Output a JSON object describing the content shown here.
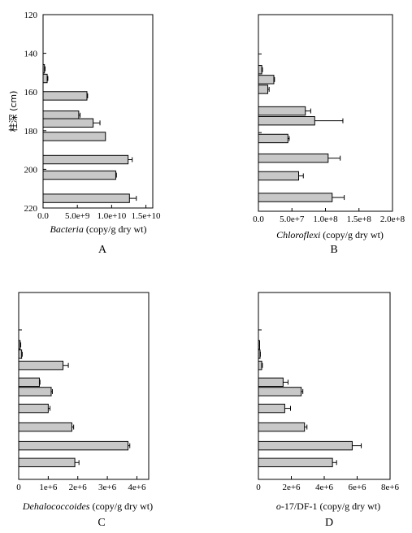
{
  "figure": {
    "y_axis_label": "柱深 (cm)",
    "y_ticks": [
      "120",
      "140",
      "160",
      "180",
      "200",
      "220"
    ],
    "y_tick_values": [
      120,
      140,
      160,
      180,
      200,
      220
    ]
  },
  "chart_data": [
    {
      "type": "bar",
      "orientation": "horizontal",
      "panel_letter": "A",
      "xlabel_italic": "Bacteria",
      "xlabel_rest": " (copy/g dry wt)",
      "x_ticks": [
        "0.0",
        "5.0e+9",
        "1.0e+10",
        "1.5e+10"
      ],
      "x_tick_values": [
        0,
        5000000000,
        10000000000,
        15000000000
      ],
      "xlim": [
        0,
        16000000000
      ],
      "ylabel": "柱深 (cm)",
      "ylim": [
        120,
        220
      ],
      "depths": [
        148,
        153,
        162,
        172,
        176,
        183,
        195,
        203,
        215
      ],
      "values": [
        200000000,
        600000000,
        6400000000,
        5200000000,
        7300000000,
        9100000000,
        12400000000,
        10600000000,
        12600000000
      ],
      "errors": [
        100000000,
        100000000,
        100000000,
        200000000,
        1000000000,
        0,
        600000000,
        100000000,
        1000000000
      ]
    },
    {
      "type": "bar",
      "orientation": "horizontal",
      "panel_letter": "B",
      "xlabel_italic": "Chloroflexi",
      "xlabel_rest": " (copy/g dry wt)",
      "x_ticks": [
        "0.0",
        "5.0e+7",
        "1.0e+8",
        "1.5e+8",
        "2.0e+8"
      ],
      "x_tick_values": [
        0,
        50000000,
        100000000,
        150000000,
        200000000
      ],
      "xlim": [
        0,
        200000000
      ],
      "ylim": [
        120,
        220
      ],
      "depths": [
        148,
        153,
        158,
        169,
        174,
        183,
        193,
        202,
        213
      ],
      "values": [
        5000000,
        23000000,
        14000000,
        70000000,
        84000000,
        44000000,
        104000000,
        60000000,
        110000000
      ],
      "errors": [
        1000000,
        1000000,
        2000000,
        8000000,
        42000000,
        2000000,
        18000000,
        7000000,
        18000000
      ]
    },
    {
      "type": "bar",
      "orientation": "horizontal",
      "panel_letter": "C",
      "xlabel_italic": "Dehalococcoides",
      "xlabel_rest": " (copy/g dry wt)",
      "x_ticks": [
        "0",
        "1e+6",
        "2e+6",
        "3e+6",
        "4e+6"
      ],
      "x_tick_values": [
        0,
        1000000,
        2000000,
        3000000,
        4000000
      ],
      "xlim": [
        0,
        4400000
      ],
      "ylim": [
        120,
        220
      ],
      "depths": [
        148,
        153,
        159,
        168,
        173,
        182,
        192,
        202,
        211
      ],
      "values": [
        50000,
        100000,
        1500000,
        700000,
        1100000,
        1000000,
        1800000,
        3700000,
        1900000
      ],
      "errors": [
        20000,
        20000,
        180000,
        20000,
        40000,
        60000,
        60000,
        60000,
        140000
      ]
    },
    {
      "type": "bar",
      "orientation": "horizontal",
      "panel_letter": "D",
      "xlabel_italic": "o",
      "xlabel_rest": "-17/DF-1 (copy/g dry wt)",
      "x_ticks": [
        "0",
        "2e+6",
        "4e+6",
        "6e+6",
        "8e+6"
      ],
      "x_tick_values": [
        0,
        2000000,
        4000000,
        6000000,
        8000000
      ],
      "xlim": [
        0,
        8000000
      ],
      "ylim": [
        120,
        220
      ],
      "depths": [
        148,
        153,
        159,
        168,
        173,
        182,
        192,
        202,
        211
      ],
      "values": [
        50000,
        100000,
        200000,
        1500000,
        2600000,
        1600000,
        2800000,
        5700000,
        4500000
      ],
      "errors": [
        20000,
        20000,
        40000,
        300000,
        100000,
        350000,
        150000,
        550000,
        250000
      ]
    }
  ]
}
